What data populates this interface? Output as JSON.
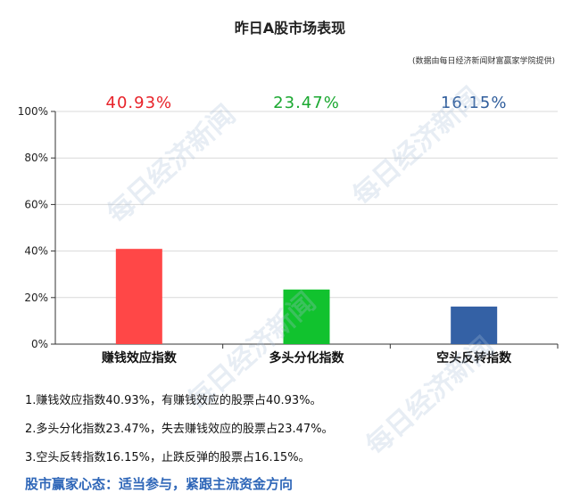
{
  "title": "昨日A股市场表现",
  "source": "(数据由每日经济新闻财富赢家学院提供)",
  "watermark": "每日经济新闻",
  "chart_data": {
    "type": "bar",
    "categories": [
      "赚钱效应指数",
      "多头分化指数",
      "空头反转指数"
    ],
    "values": [
      40.93,
      23.47,
      16.15
    ],
    "value_labels": [
      "40.93%",
      "23.47%",
      "16.15%"
    ],
    "colors": [
      "#ff4747",
      "#11c22e",
      "#3461a5"
    ],
    "label_colors": [
      "#e8232a",
      "#1aa830",
      "#2f5d9c"
    ],
    "ylim": [
      0,
      100
    ],
    "yticks": [
      "0%",
      "20%",
      "40%",
      "60%",
      "80%",
      "100%"
    ],
    "grid": true
  },
  "notes": [
    "1.赚钱效应指数40.93%，有赚钱效应的股票占40.93%。",
    "2.多头分化指数23.47%，失去赚钱效应的股票占23.47%。",
    "3.空头反转指数16.15%，止跌反弹的股票占16.15%。"
  ],
  "slogan": "股市赢家心态：适当参与，紧跟主流资金方向"
}
